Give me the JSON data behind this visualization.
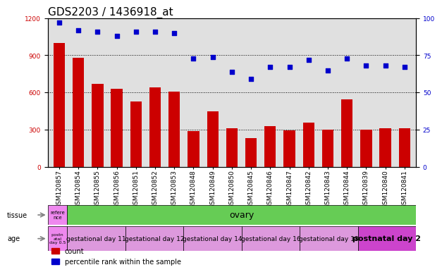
{
  "title": "GDS2203 / 1436918_at",
  "samples": [
    "GSM120857",
    "GSM120854",
    "GSM120855",
    "GSM120856",
    "GSM120851",
    "GSM120852",
    "GSM120853",
    "GSM120848",
    "GSM120849",
    "GSM120850",
    "GSM120845",
    "GSM120846",
    "GSM120847",
    "GSM120842",
    "GSM120843",
    "GSM120844",
    "GSM120839",
    "GSM120840",
    "GSM120841"
  ],
  "counts": [
    1000,
    880,
    670,
    630,
    530,
    640,
    610,
    290,
    450,
    310,
    230,
    330,
    295,
    360,
    300,
    545,
    300,
    310,
    310
  ],
  "percentiles": [
    97,
    92,
    91,
    88,
    91,
    91,
    90,
    73,
    74,
    64,
    59,
    67,
    67,
    72,
    65,
    73,
    68,
    68,
    67
  ],
  "ylim_left": [
    0,
    1200
  ],
  "ylim_right": [
    0,
    100
  ],
  "yticks_left": [
    0,
    300,
    600,
    900,
    1200
  ],
  "yticks_right": [
    0,
    25,
    50,
    75,
    100
  ],
  "bar_color": "#cc0000",
  "dot_color": "#0000cc",
  "tissue_row": {
    "label": "tissue",
    "first_cell_text": "refere\nnce",
    "first_cell_color": "#ee88ee",
    "rest_text": "ovary",
    "rest_color": "#66cc55"
  },
  "age_row": {
    "label": "age",
    "first_cell_text": "postn\natal\nday 0.5",
    "first_cell_color": "#ee88ee",
    "groups": [
      {
        "text": "gestational day 11",
        "color": "#dd99dd",
        "count": 3
      },
      {
        "text": "gestational day 12",
        "color": "#dd99dd",
        "count": 3
      },
      {
        "text": "gestational day 14",
        "color": "#dd99dd",
        "count": 3
      },
      {
        "text": "gestational day 16",
        "color": "#dd99dd",
        "count": 3
      },
      {
        "text": "gestational day 18",
        "color": "#dd99dd",
        "count": 3
      },
      {
        "text": "postnatal day 2",
        "color": "#cc44cc",
        "count": 3
      }
    ]
  },
  "legend_count_color": "#cc0000",
  "legend_percentile_color": "#0000cc",
  "background_color": "#ffffff",
  "plot_bg_color": "#e0e0e0",
  "title_fontsize": 11,
  "tick_fontsize": 6.5,
  "label_fontsize": 7.5
}
